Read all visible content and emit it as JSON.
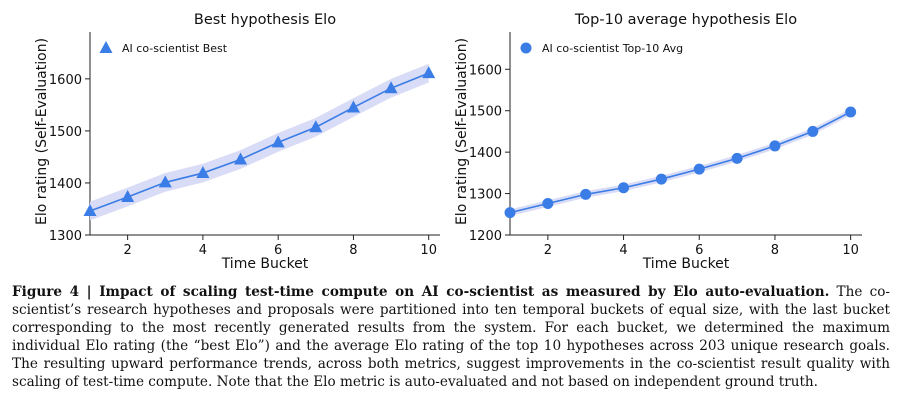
{
  "chart_data": [
    {
      "type": "line",
      "title": "Best hypothesis Elo",
      "xlabel": "Time Bucket",
      "ylabel": "Elo rating (Self-Evaluation)",
      "xlim": [
        1,
        10.3
      ],
      "ylim": [
        1300,
        1690
      ],
      "xticks": [
        2,
        4,
        6,
        8,
        10
      ],
      "yticks": [
        1300,
        1400,
        1500,
        1600
      ],
      "legend": "top-left",
      "marker": "triangle",
      "color": "#3b7de6",
      "band_color": "#d9dcf6",
      "series": [
        {
          "name": "AI co-scientist Best",
          "x": [
            1,
            2,
            3,
            4,
            5,
            6,
            7,
            8,
            9,
            10
          ],
          "values": [
            1346,
            1373,
            1401,
            1419,
            1445,
            1478,
            1507,
            1545,
            1582,
            1611
          ],
          "band": 18
        }
      ]
    },
    {
      "type": "line",
      "title": "Top-10 average hypothesis Elo",
      "xlabel": "Time Bucket",
      "ylabel": "Elo rating (Self-Evaluation)",
      "xlim": [
        1,
        10.3
      ],
      "ylim": [
        1200,
        1690
      ],
      "xticks": [
        2,
        4,
        6,
        8,
        10
      ],
      "yticks": [
        1200,
        1300,
        1400,
        1500,
        1600
      ],
      "legend": "top-left",
      "marker": "circle",
      "color": "#3b7de6",
      "band_color": "#d9dcf6",
      "series": [
        {
          "name": "AI co-scientist Top-10 Avg",
          "x": [
            1,
            2,
            3,
            4,
            5,
            6,
            7,
            8,
            9,
            10
          ],
          "values": [
            1254,
            1276,
            1298,
            1314,
            1335,
            1359,
            1385,
            1415,
            1450,
            1497
          ],
          "band": 8
        }
      ]
    }
  ],
  "caption": {
    "label": "Figure 4 | Impact of scaling test-time compute on AI co-scientist as measured by Elo auto-evaluation.",
    "text": "The co-scientist’s research hypotheses and proposals were partitioned into ten temporal buckets of equal size, with the last bucket corresponding to the most recently generated results from the system. For each bucket, we determined the maximum individual Elo rating (the “best Elo”) and the average Elo rating of the top 10 hypotheses across 203 unique research goals. The resulting upward performance trends, across both metrics, suggest improvements in the co-scientist result quality with scaling of test-time compute. Note that the Elo metric is auto-evaluated and not based on independent ground truth."
  }
}
